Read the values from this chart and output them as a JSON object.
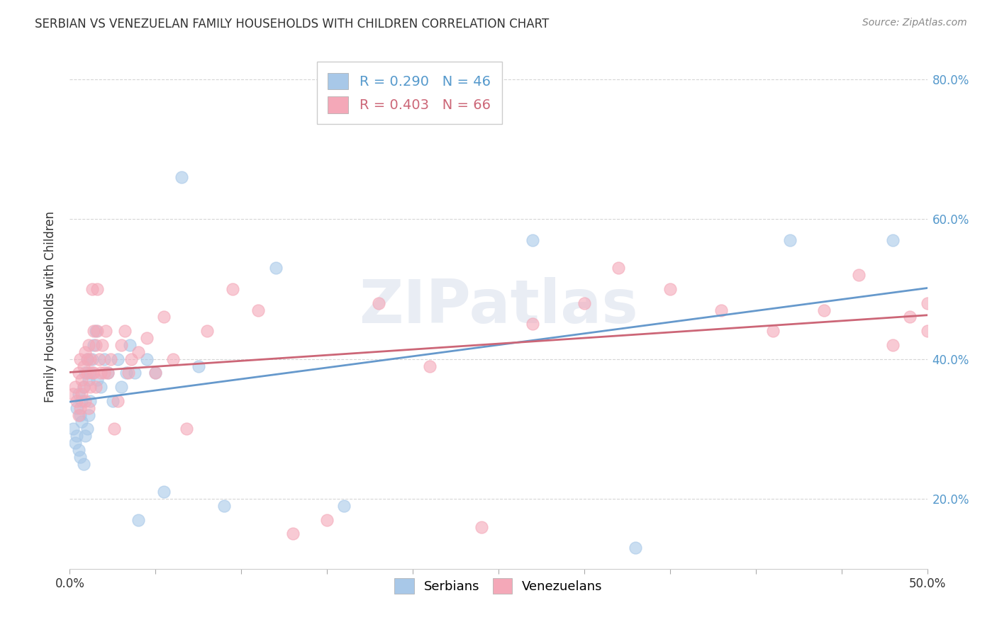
{
  "title": "SERBIAN VS VENEZUELAN FAMILY HOUSEHOLDS WITH CHILDREN CORRELATION CHART",
  "source": "Source: ZipAtlas.com",
  "xlim": [
    0.0,
    0.5
  ],
  "ylim": [
    0.1,
    0.85
  ],
  "ylabel": "Family Households with Children",
  "watermark": "ZIPatlas",
  "serbian_color": "#a8c8e8",
  "venezuelan_color": "#f4a8b8",
  "serbian_line_color": "#6699cc",
  "venezuelan_line_color": "#cc6677",
  "serbian_R": 0.29,
  "serbian_N": 46,
  "venezuelan_R": 0.403,
  "venezuelan_N": 66,
  "serbian_x": [
    0.002,
    0.003,
    0.004,
    0.004,
    0.005,
    0.005,
    0.006,
    0.006,
    0.007,
    0.007,
    0.008,
    0.008,
    0.009,
    0.009,
    0.01,
    0.01,
    0.011,
    0.011,
    0.012,
    0.012,
    0.013,
    0.014,
    0.015,
    0.016,
    0.018,
    0.02,
    0.022,
    0.025,
    0.028,
    0.03,
    0.033,
    0.035,
    0.038,
    0.04,
    0.045,
    0.05,
    0.055,
    0.065,
    0.075,
    0.09,
    0.12,
    0.16,
    0.27,
    0.33,
    0.42,
    0.48
  ],
  "serbian_y": [
    0.3,
    0.28,
    0.33,
    0.29,
    0.35,
    0.27,
    0.32,
    0.26,
    0.34,
    0.31,
    0.36,
    0.25,
    0.38,
    0.29,
    0.4,
    0.3,
    0.37,
    0.32,
    0.38,
    0.34,
    0.4,
    0.42,
    0.44,
    0.37,
    0.36,
    0.4,
    0.38,
    0.34,
    0.4,
    0.36,
    0.38,
    0.42,
    0.38,
    0.17,
    0.4,
    0.38,
    0.21,
    0.66,
    0.39,
    0.19,
    0.53,
    0.19,
    0.57,
    0.13,
    0.57,
    0.57
  ],
  "venezuelan_x": [
    0.002,
    0.003,
    0.004,
    0.005,
    0.005,
    0.006,
    0.006,
    0.007,
    0.007,
    0.008,
    0.008,
    0.009,
    0.009,
    0.01,
    0.01,
    0.011,
    0.011,
    0.012,
    0.012,
    0.013,
    0.013,
    0.014,
    0.014,
    0.015,
    0.015,
    0.016,
    0.016,
    0.017,
    0.018,
    0.019,
    0.02,
    0.021,
    0.022,
    0.024,
    0.026,
    0.028,
    0.03,
    0.032,
    0.034,
    0.036,
    0.04,
    0.045,
    0.05,
    0.055,
    0.06,
    0.068,
    0.08,
    0.095,
    0.11,
    0.13,
    0.15,
    0.18,
    0.21,
    0.24,
    0.27,
    0.3,
    0.32,
    0.35,
    0.38,
    0.41,
    0.44,
    0.46,
    0.48,
    0.49,
    0.5,
    0.5
  ],
  "venezuelan_y": [
    0.35,
    0.36,
    0.34,
    0.38,
    0.32,
    0.4,
    0.33,
    0.37,
    0.35,
    0.39,
    0.36,
    0.41,
    0.34,
    0.4,
    0.38,
    0.42,
    0.33,
    0.4,
    0.36,
    0.38,
    0.5,
    0.44,
    0.38,
    0.42,
    0.36,
    0.5,
    0.44,
    0.4,
    0.38,
    0.42,
    0.38,
    0.44,
    0.38,
    0.4,
    0.3,
    0.34,
    0.42,
    0.44,
    0.38,
    0.4,
    0.41,
    0.43,
    0.38,
    0.46,
    0.4,
    0.3,
    0.44,
    0.5,
    0.47,
    0.15,
    0.17,
    0.48,
    0.39,
    0.16,
    0.45,
    0.48,
    0.53,
    0.5,
    0.47,
    0.44,
    0.47,
    0.52,
    0.42,
    0.46,
    0.48,
    0.44
  ]
}
